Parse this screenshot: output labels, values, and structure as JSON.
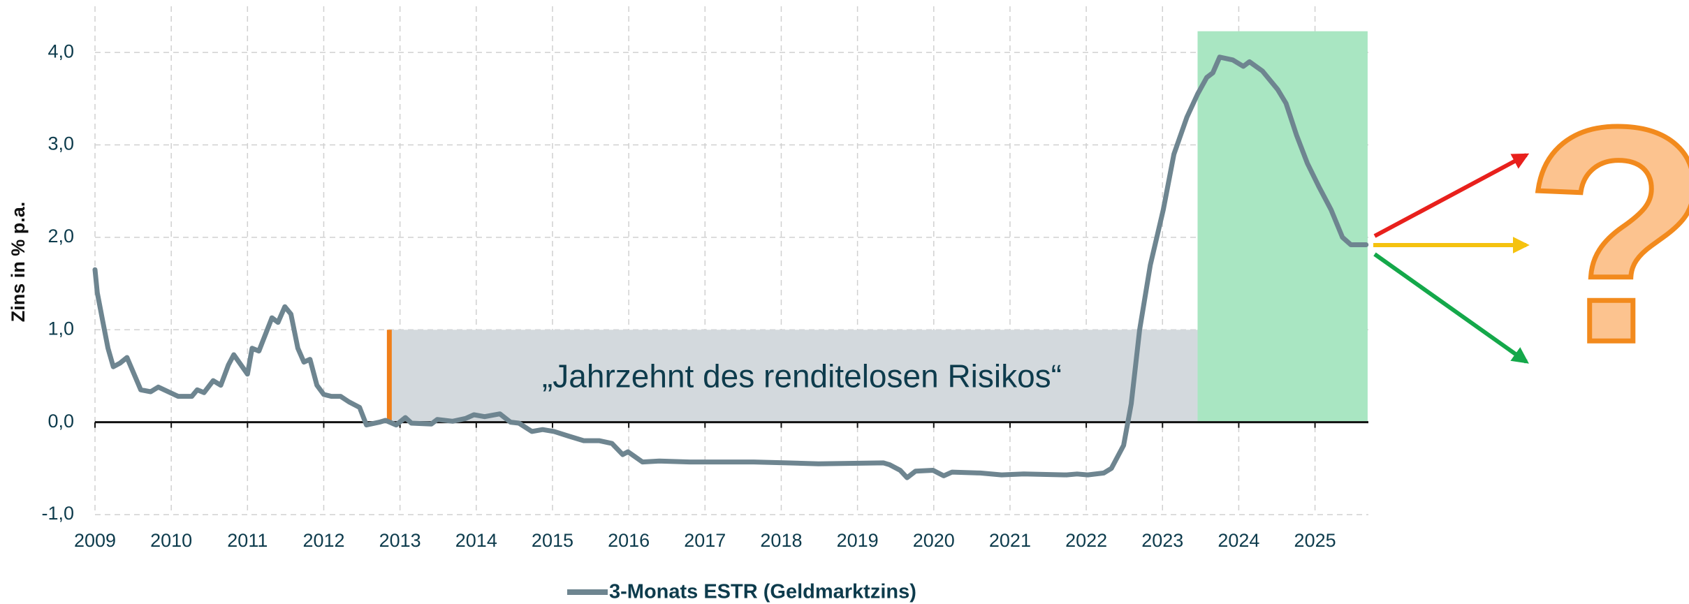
{
  "chart_data": {
    "type": "line",
    "ylabel": "Zins in % p.a.",
    "xlim": [
      2009,
      2025.7
    ],
    "ylim": [
      -1,
      4.5
    ],
    "xticks": [
      2009,
      2010,
      2011,
      2012,
      2013,
      2014,
      2015,
      2016,
      2017,
      2018,
      2019,
      2020,
      2021,
      2022,
      2023,
      2024,
      2025
    ],
    "yticks": [
      {
        "value": -1,
        "label": "-1,0"
      },
      {
        "value": 0,
        "label": "0,0"
      },
      {
        "value": 1,
        "label": "1,0"
      },
      {
        "value": 2,
        "label": "2,0"
      },
      {
        "value": 3,
        "label": "3,0"
      },
      {
        "value": 4,
        "label": "4,0"
      }
    ],
    "grid": true,
    "legend": "bottom",
    "series": [
      {
        "name": "3-Monats ESTR (Geldmarktzins)",
        "color": "#6e8590",
        "x": [
          2009.0,
          2009.03,
          2009.1,
          2009.17,
          2009.24,
          2009.33,
          2009.42,
          2009.6,
          2009.73,
          2009.83,
          2010.09,
          2010.27,
          2010.34,
          2010.43,
          2010.55,
          2010.65,
          2010.75,
          2010.82,
          2011.0,
          2011.06,
          2011.15,
          2011.32,
          2011.4,
          2011.49,
          2011.57,
          2011.66,
          2011.74,
          2011.82,
          2011.91,
          2012.0,
          2012.1,
          2012.22,
          2012.33,
          2012.47,
          2012.56,
          2012.73,
          2012.81,
          2012.95,
          2013.07,
          2013.15,
          2013.41,
          2013.49,
          2013.69,
          2013.86,
          2013.97,
          2014.11,
          2014.31,
          2014.45,
          2014.56,
          2014.73,
          2014.87,
          2015.02,
          2015.21,
          2015.41,
          2015.61,
          2015.78,
          2015.92,
          2015.99,
          2016.18,
          2016.4,
          2016.8,
          2017.64,
          2018.07,
          2018.49,
          2019.34,
          2019.42,
          2019.56,
          2019.65,
          2019.76,
          2019.99,
          2020.13,
          2020.24,
          2020.61,
          2020.89,
          2021.18,
          2021.74,
          2021.88,
          2022.02,
          2022.23,
          2022.33,
          2022.49,
          2022.59,
          2022.7,
          2022.84,
          2023.01,
          2023.15,
          2023.32,
          2023.46,
          2023.58,
          2023.66,
          2023.75,
          2023.92,
          2024.06,
          2024.14,
          2024.31,
          2024.51,
          2024.62,
          2024.76,
          2024.9,
          2025.05,
          2025.21,
          2025.36,
          2025.47,
          2025.67
        ],
        "values": [
          1.65,
          1.4,
          1.1,
          0.8,
          0.6,
          0.64,
          0.7,
          0.35,
          0.33,
          0.38,
          0.28,
          0.28,
          0.35,
          0.32,
          0.45,
          0.4,
          0.62,
          0.73,
          0.52,
          0.8,
          0.77,
          1.13,
          1.08,
          1.25,
          1.17,
          0.8,
          0.65,
          0.68,
          0.4,
          0.3,
          0.28,
          0.28,
          0.22,
          0.16,
          -0.03,
          0.0,
          0.02,
          -0.03,
          0.05,
          -0.01,
          -0.02,
          0.03,
          0.01,
          0.04,
          0.08,
          0.06,
          0.09,
          0.0,
          -0.01,
          -0.1,
          -0.08,
          -0.1,
          -0.15,
          -0.2,
          -0.2,
          -0.23,
          -0.35,
          -0.32,
          -0.43,
          -0.42,
          -0.43,
          -0.43,
          -0.44,
          -0.45,
          -0.44,
          -0.46,
          -0.52,
          -0.6,
          -0.53,
          -0.52,
          -0.58,
          -0.54,
          -0.55,
          -0.57,
          -0.56,
          -0.57,
          -0.56,
          -0.57,
          -0.55,
          -0.5,
          -0.25,
          0.2,
          1.0,
          1.7,
          2.3,
          2.9,
          3.3,
          3.55,
          3.73,
          3.78,
          3.95,
          3.92,
          3.85,
          3.9,
          3.8,
          3.6,
          3.45,
          3.1,
          2.8,
          2.55,
          2.3,
          2.0,
          1.92,
          1.92
        ]
      }
    ],
    "shaded_regions": [
      {
        "x": [
          2012.88,
          2023.46
        ],
        "y": [
          0,
          1
        ],
        "color": "#d3d9dd",
        "label": "„Jahrzehnt des renditelosen Risikos“"
      },
      {
        "x": [
          2023.46,
          2025.69
        ],
        "y": [
          0,
          4.23
        ],
        "color": "#a9e6c2"
      }
    ],
    "marker_lines": [
      {
        "x": 2012.86,
        "y": [
          0,
          1
        ],
        "color": "#f07f1a"
      }
    ],
    "annotations": [
      {
        "text": "?"
      }
    ]
  }
}
